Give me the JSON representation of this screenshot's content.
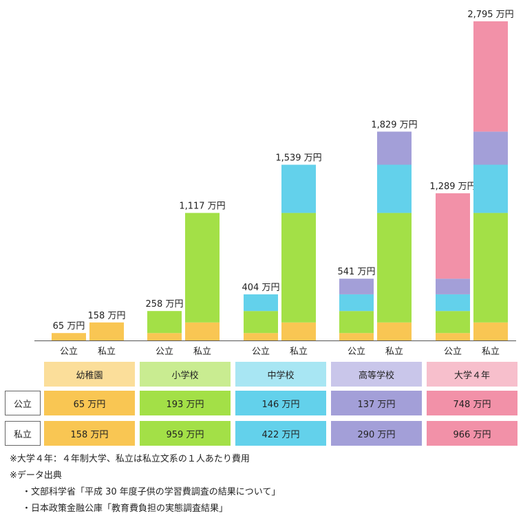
{
  "chart_data": {
    "type": "bar",
    "stacked": true,
    "categories": [
      "公立",
      "私立",
      "公立",
      "私立",
      "公立",
      "私立",
      "公立",
      "私立",
      "公立",
      "私立"
    ],
    "stages": [
      "幼稚園",
      "小学校",
      "中学校",
      "高等学校",
      "大学４年"
    ],
    "colors": {
      "幼稚園": "#F9C653",
      "小学校": "#A3E047",
      "中学校": "#63D1EB",
      "高等学校": "#A39FD8",
      "大学４年": "#F291A8"
    },
    "header_colors": {
      "幼稚園": "#FBDE9A",
      "小学校": "#C9EC91",
      "中学校": "#A8E6F3",
      "高等学校": "#C9C6EA",
      "大学４年": "#F7BFCC"
    },
    "groups": [
      {
        "type_label": "公立",
        "total_label": "65 万円",
        "segments": [
          65
        ]
      },
      {
        "type_label": "私立",
        "total_label": "158 万円",
        "segments": [
          158
        ]
      },
      {
        "type_label": "公立",
        "total_label": "258 万円",
        "segments": [
          65,
          193
        ]
      },
      {
        "type_label": "私立",
        "total_label": "1,117 万円",
        "segments": [
          158,
          959
        ]
      },
      {
        "type_label": "公立",
        "total_label": "404 万円",
        "segments": [
          65,
          193,
          146
        ]
      },
      {
        "type_label": "私立",
        "total_label": "1,539 万円",
        "segments": [
          158,
          959,
          422
        ]
      },
      {
        "type_label": "公立",
        "total_label": "541 万円",
        "segments": [
          65,
          193,
          146,
          137
        ]
      },
      {
        "type_label": "私立",
        "total_label": "1,829 万円",
        "segments": [
          158,
          959,
          422,
          290
        ]
      },
      {
        "type_label": "公立",
        "total_label": "1,289 万円",
        "segments": [
          65,
          193,
          146,
          137,
          748
        ]
      },
      {
        "type_label": "私立",
        "total_label": "2,795 万円",
        "segments": [
          158,
          959,
          422,
          290,
          966
        ]
      }
    ],
    "ylim": [
      0,
      2795
    ]
  },
  "table": {
    "stage_headers": [
      "幼稚園",
      "小学校",
      "中学校",
      "高等学校",
      "大学４年"
    ],
    "rows": [
      {
        "label": "公立",
        "values": [
          "65 万円",
          "193 万円",
          "146 万円",
          "137 万円",
          "748 万円"
        ]
      },
      {
        "label": "私立",
        "values": [
          "158 万円",
          "959 万円",
          "422 万円",
          "290 万円",
          "966 万円"
        ]
      }
    ]
  },
  "notes": {
    "line1": "※大学４年：４年制大学、私立は私立文系の１人あたり費用",
    "line2": "※データ出典",
    "line3": "・文部科学省「平成 30 年度子供の学習費調査の結果について」",
    "line4": "・日本政策金融公庫「教育費負担の実態調査結果」"
  }
}
